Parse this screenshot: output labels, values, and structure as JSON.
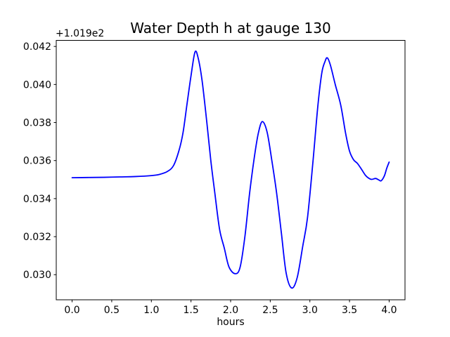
{
  "figure": {
    "background": "#ffffff",
    "frame_color": "#000000"
  },
  "chart_data": {
    "type": "line",
    "title": "Water Depth h at gauge 130",
    "xlabel": "hours",
    "ylabel": "",
    "y_axis_offset": "+1.019e2",
    "grid": false,
    "legend_position": "none",
    "xticks": [
      "0.0",
      "0.5",
      "1.0",
      "1.5",
      "2.0",
      "2.5",
      "3.0",
      "3.5",
      "4.0"
    ],
    "yticks": [
      "0.030",
      "0.032",
      "0.034",
      "0.036",
      "0.038",
      "0.040",
      "0.042"
    ],
    "xlim": [
      -0.2,
      4.2
    ],
    "ylim": [
      0.02868,
      0.04232
    ],
    "series": [
      {
        "name": "water depth h at gauge 130",
        "color": "#0000ff",
        "line_width": 1.8,
        "x": [
          0.0,
          0.2,
          0.4,
          0.6,
          0.8,
          1.0,
          1.1,
          1.2,
          1.28,
          1.35,
          1.4,
          1.45,
          1.5,
          1.55,
          1.59,
          1.64,
          1.7,
          1.75,
          1.8,
          1.86,
          1.92,
          1.98,
          2.06,
          2.12,
          2.18,
          2.24,
          2.3,
          2.35,
          2.4,
          2.46,
          2.52,
          2.58,
          2.64,
          2.7,
          2.77,
          2.84,
          2.91,
          2.97,
          3.04,
          3.1,
          3.15,
          3.19,
          3.22,
          3.26,
          3.32,
          3.39,
          3.45,
          3.5,
          3.55,
          3.6,
          3.65,
          3.7,
          3.74,
          3.78,
          3.83,
          3.87,
          3.9,
          3.94,
          3.97,
          4.0
        ],
        "y": [
          0.0351,
          0.03511,
          0.03512,
          0.03514,
          0.03516,
          0.03521,
          0.03527,
          0.03542,
          0.03574,
          0.03655,
          0.03748,
          0.03898,
          0.04045,
          0.0417,
          0.0414,
          0.0402,
          0.038,
          0.036,
          0.03432,
          0.0324,
          0.0314,
          0.0304,
          0.03005,
          0.0304,
          0.032,
          0.0343,
          0.0362,
          0.03745,
          0.03805,
          0.0375,
          0.036,
          0.0343,
          0.0322,
          0.0301,
          0.0293,
          0.02985,
          0.0315,
          0.033,
          0.036,
          0.03885,
          0.0406,
          0.0412,
          0.0414,
          0.041,
          0.04,
          0.0389,
          0.03745,
          0.0365,
          0.03605,
          0.03585,
          0.03555,
          0.03523,
          0.03508,
          0.03501,
          0.03506,
          0.03498,
          0.03494,
          0.0352,
          0.0356,
          0.03592
        ]
      }
    ]
  }
}
